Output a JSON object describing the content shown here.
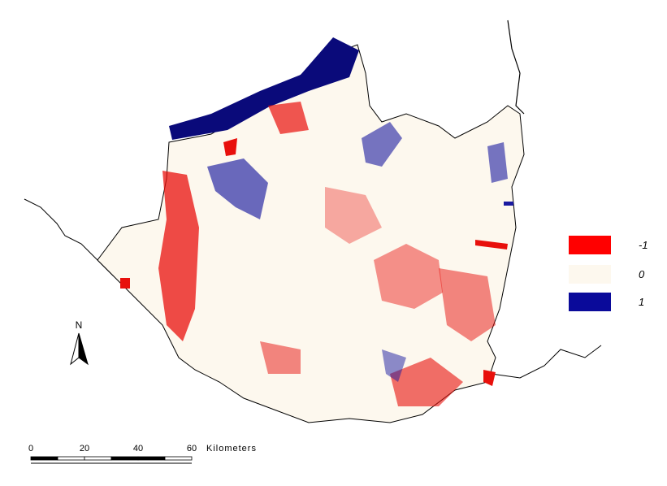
{
  "map": {
    "legend": [
      {
        "label": "-1",
        "color": "#ff0000"
      },
      {
        "label": "0",
        "color": "#fdf8ee"
      },
      {
        "label": "1",
        "color": "#0a0a9a"
      }
    ],
    "north_arrow": {
      "label": "N"
    },
    "scale_bar": {
      "labels": [
        "0",
        "20",
        "40",
        "60"
      ],
      "unit": "Kilometers"
    }
  }
}
